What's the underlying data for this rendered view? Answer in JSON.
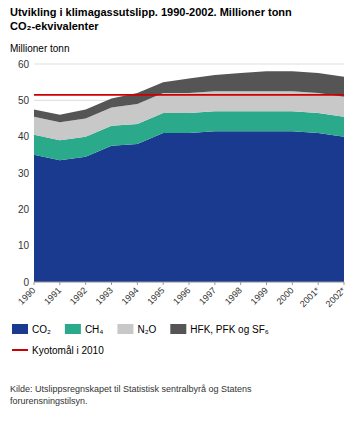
{
  "chart_data": {
    "type": "area",
    "stacked": true,
    "title": "Utvikling i klimagassutslipp. 1990-2002. Millioner tonn",
    "subtitle": "CO₂-ekvivalenter",
    "y_label": "Millioner tonn",
    "categories": [
      "1990",
      "1991",
      "1992",
      "1993",
      "1994",
      "1995",
      "1996",
      "1997",
      "1998",
      "1999",
      "2000",
      "2001*",
      "2002*"
    ],
    "series": [
      {
        "name": "CO₂",
        "color": "#1a3a8f",
        "values": [
          35.0,
          33.5,
          34.5,
          37.5,
          38.0,
          41.0,
          41.0,
          41.5,
          41.5,
          41.5,
          41.5,
          41.0,
          40.0
        ]
      },
      {
        "name": "CH₄",
        "color": "#2aaa8a",
        "values": [
          5.5,
          5.5,
          5.5,
          5.5,
          5.5,
          5.5,
          5.5,
          5.5,
          5.5,
          5.5,
          5.5,
          5.5,
          5.5
        ]
      },
      {
        "name": "N₂O",
        "color": "#c8c8c8",
        "values": [
          5.0,
          5.0,
          5.0,
          5.0,
          5.5,
          5.5,
          5.5,
          5.5,
          5.5,
          5.5,
          5.5,
          5.5,
          5.5
        ]
      },
      {
        "name": "HFK, PFK og SF₆",
        "color": "#555555",
        "values": [
          2.0,
          2.0,
          2.5,
          2.5,
          3.0,
          3.0,
          4.0,
          4.5,
          5.0,
          5.5,
          5.5,
          5.5,
          5.5
        ]
      }
    ],
    "reference_lines": [
      {
        "name": "Kyotomål i 2010",
        "value": 51.5,
        "color": "#cc0000"
      }
    ],
    "ylim": [
      0,
      60
    ],
    "yticks": [
      0,
      10,
      20,
      30,
      40,
      50,
      60
    ],
    "grid": true,
    "legend": "bottom",
    "source": "Kilde: Utslippsregnskapet til Statistisk sentralbyrå og Statens\nforurensningstilsyn."
  }
}
